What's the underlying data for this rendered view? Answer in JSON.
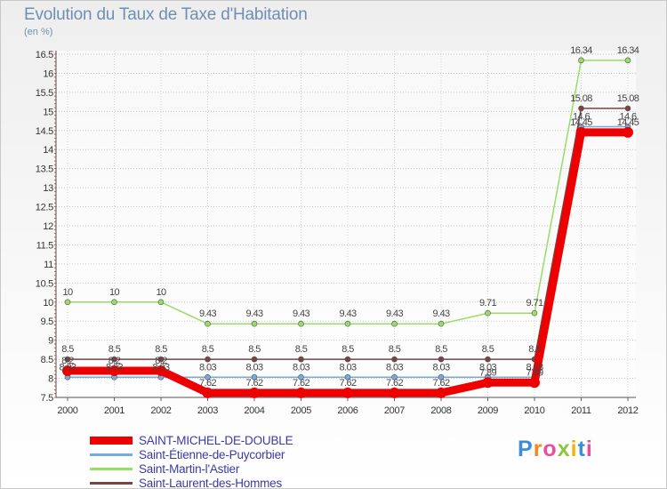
{
  "chart_data": {
    "type": "line",
    "title": "Evolution du Taux de Taxe d'Habitation",
    "ylabel": "(en %)",
    "xlabel": "",
    "ylim": [
      7.5,
      16.5
    ],
    "yticks": [
      "7.5",
      "8",
      "8.5",
      "9",
      "9.5",
      "10",
      "10.5",
      "11",
      "11.5",
      "12",
      "12.5",
      "13",
      "13.5",
      "14",
      "14.5",
      "15",
      "15.5",
      "16",
      "16.5"
    ],
    "categories": [
      "2000",
      "2001",
      "2002",
      "2003",
      "2004",
      "2005",
      "2006",
      "2007",
      "2008",
      "2009",
      "2010",
      "2011",
      "2012"
    ],
    "series": [
      {
        "name": "SAINT-MICHEL-DE-DOUBLE",
        "color": "#ee0000",
        "values": [
          8.2,
          8.2,
          8.2,
          7.62,
          7.62,
          7.62,
          7.62,
          7.62,
          7.62,
          7.89,
          7.89,
          14.45,
          14.45
        ],
        "labels": [
          "8.2",
          "8.2",
          "8.2",
          "7.62",
          "7.62",
          "7.62",
          "7.62",
          "7.62",
          "7.62",
          "7.89",
          "7.89",
          "14.45",
          "14.45"
        ]
      },
      {
        "name": "Saint-Étienne-de-Puycorbier",
        "color": "#77aadd",
        "values": [
          8.03,
          8.03,
          8.03,
          8.03,
          8.03,
          8.03,
          8.03,
          8.03,
          8.03,
          8.03,
          8.03,
          14.6,
          14.6
        ],
        "labels": [
          "8.03",
          "8.03",
          "8.03",
          "8.03",
          "8.03",
          "8.03",
          "8.03",
          "8.03",
          "8.03",
          "8.03",
          "8.03",
          "14.6",
          "14.6"
        ]
      },
      {
        "name": "Saint-Martin-l'Astier",
        "color": "#99dd66",
        "values": [
          10,
          10,
          10,
          9.43,
          9.43,
          9.43,
          9.43,
          9.43,
          9.43,
          9.71,
          9.71,
          16.34,
          16.34
        ],
        "labels": [
          "10",
          "10",
          "10",
          "9.43",
          "9.43",
          "9.43",
          "9.43",
          "9.43",
          "9.43",
          "9.71",
          "9.71",
          "16.34",
          "16.34"
        ]
      },
      {
        "name": "Saint-Laurent-des-Hommes",
        "color": "#774444",
        "values": [
          8.5,
          8.5,
          8.5,
          8.5,
          8.5,
          8.5,
          8.5,
          8.5,
          8.5,
          8.5,
          8.5,
          15.08,
          15.08
        ],
        "labels": [
          "8.5",
          "8.5",
          "8.5",
          "8.5",
          "8.5",
          "8.5",
          "8.5",
          "8.5",
          "8.5",
          "8.5",
          "8.5",
          "15.08",
          "15.08"
        ]
      }
    ]
  },
  "legend": {
    "items": [
      {
        "label": "SAINT-MICHEL-DE-DOUBLE",
        "color": "#ee0000"
      },
      {
        "label": "Saint-Étienne-de-Puycorbier",
        "color": "#77aadd"
      },
      {
        "label": "Saint-Martin-l'Astier",
        "color": "#99dd66"
      },
      {
        "label": "Saint-Laurent-des-Hommes",
        "color": "#774444"
      }
    ]
  },
  "logo": {
    "text": "Proxiti",
    "colors": [
      "#3b8fd6",
      "#f08a1c",
      "#e94e9b",
      "#8cc63f",
      "#f4b400",
      "#3b8fd6",
      "#e94e9b"
    ]
  }
}
